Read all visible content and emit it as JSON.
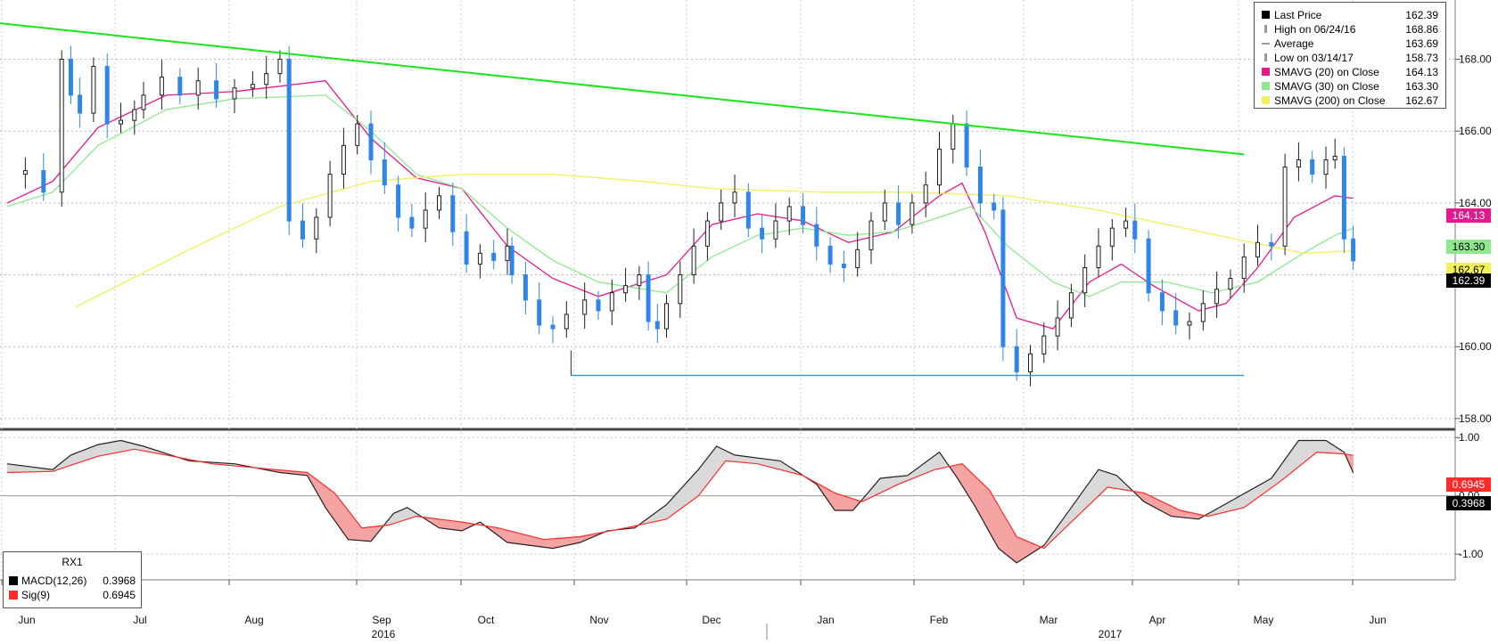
{
  "colors": {
    "up_candle": "#1e1e1e",
    "down_candle": "#2e86e8",
    "trendline": "#19e619",
    "support": "#3a9ad9",
    "sma20": "#e6198c",
    "sma30": "#8fe88f",
    "sma200": "#f0f05a",
    "macd": "#222222",
    "signal": "#ff2a2a",
    "macd_fill_up": "#d9d9d9",
    "macd_fill_down": "#f5a3a3"
  },
  "legend": {
    "items": [
      {
        "name": "Last Price",
        "value": "162.39",
        "swatch": "#000000"
      },
      {
        "name": "High on 06/24/16",
        "value": "168.86",
        "swatch": "#9a9a9a"
      },
      {
        "name": "Average",
        "value": "163.69",
        "swatch": "#9a9a9a"
      },
      {
        "name": "Low on 03/14/17",
        "value": "158.73",
        "swatch": "#9a9a9a"
      },
      {
        "name": "SMAVG (20) on Close",
        "value": "164.13",
        "swatch": "#e6198c"
      },
      {
        "name": "SMAVG (30) on Close",
        "value": "163.30",
        "swatch": "#8fe88f"
      },
      {
        "name": "SMAVG (200) on Close",
        "value": "162.67",
        "swatch": "#f0f05a"
      }
    ]
  },
  "price_tags": [
    {
      "value": "164.13",
      "bg": "#e6198c",
      "fg": "#ffffff"
    },
    {
      "value": "163.30",
      "bg": "#8fe88f",
      "fg": "#000000"
    },
    {
      "value": "162.67",
      "bg": "#f0f05a",
      "fg": "#000000"
    },
    {
      "value": "162.39",
      "bg": "#000000",
      "fg": "#ffffff"
    }
  ],
  "macd_tags": [
    {
      "value": "0.6945",
      "bg": "#ff2a2a",
      "fg": "#ffffff"
    },
    {
      "value": "0.3968",
      "bg": "#000000",
      "fg": "#ffffff"
    }
  ],
  "macd_legend": {
    "title": "RX1",
    "items": [
      {
        "name": "MACD(12,26)",
        "value": "0.3968",
        "swatch": "#000000"
      },
      {
        "name": "Sig(9)",
        "value": "0.6945",
        "swatch": "#ff2a2a"
      }
    ]
  },
  "chart_data": {
    "type": "candlestick",
    "price_axis": {
      "ticks": [
        "158.00",
        "160.00",
        "162.00",
        "164.00",
        "166.00",
        "168.00"
      ],
      "range": [
        157.75,
        169.5
      ]
    },
    "macd_axis": {
      "ticks": [
        "1.00",
        "0.00",
        "-1.00"
      ],
      "range": [
        -1.35,
        1.08
      ]
    },
    "months": [
      "Jun",
      "Jul",
      "Aug",
      "Sep",
      "Oct",
      "Nov",
      "Dec",
      "Jan",
      "Feb",
      "Mar",
      "Apr",
      "May",
      "Jun"
    ],
    "years": [
      "2016",
      "2017"
    ],
    "trendline": [
      [
        0,
        169.0
      ],
      [
        272,
        165.35
      ]
    ],
    "support": [
      [
        124,
        159.2
      ],
      [
        272,
        159.2
      ]
    ],
    "closes": [
      [
        0,
        164.8
      ],
      [
        4,
        164.9
      ],
      [
        8,
        164.3
      ],
      [
        12,
        168.0
      ],
      [
        14,
        167.0
      ],
      [
        16,
        166.5
      ],
      [
        19,
        167.8
      ],
      [
        22,
        166.2
      ],
      [
        25,
        166.3
      ],
      [
        28,
        166.6
      ],
      [
        30,
        167.0
      ],
      [
        34,
        167.5
      ],
      [
        38,
        167.0
      ],
      [
        42,
        167.4
      ],
      [
        46,
        166.9
      ],
      [
        50,
        167.2
      ],
      [
        54,
        167.3
      ],
      [
        57,
        167.6
      ],
      [
        60,
        168.0
      ],
      [
        62,
        163.5
      ],
      [
        65,
        163.0
      ],
      [
        68,
        163.6
      ],
      [
        71,
        164.8
      ],
      [
        74,
        165.6
      ],
      [
        77,
        166.2
      ],
      [
        80,
        165.2
      ],
      [
        83,
        164.5
      ],
      [
        86,
        163.6
      ],
      [
        89,
        163.3
      ],
      [
        92,
        163.8
      ],
      [
        95,
        164.2
      ],
      [
        98,
        163.2
      ],
      [
        101,
        162.3
      ],
      [
        104,
        162.6
      ],
      [
        107,
        162.4
      ],
      [
        110,
        162.8
      ],
      [
        111,
        162.0
      ],
      [
        114,
        161.3
      ],
      [
        117,
        160.6
      ],
      [
        120,
        160.5
      ],
      [
        123,
        160.9
      ],
      [
        127,
        161.3
      ],
      [
        130,
        161.0
      ],
      [
        133,
        161.5
      ],
      [
        136,
        161.7
      ],
      [
        139,
        162.0
      ],
      [
        141,
        160.7
      ],
      [
        143,
        160.5
      ],
      [
        145,
        161.2
      ],
      [
        148,
        162.0
      ],
      [
        151,
        162.8
      ],
      [
        154,
        163.5
      ],
      [
        157,
        164.0
      ],
      [
        160,
        164.3
      ],
      [
        163,
        163.3
      ],
      [
        166,
        163.0
      ],
      [
        169,
        163.5
      ],
      [
        172,
        163.9
      ],
      [
        175,
        163.4
      ],
      [
        178,
        162.8
      ],
      [
        181,
        162.3
      ],
      [
        184,
        162.2
      ],
      [
        187,
        162.7
      ],
      [
        190,
        163.5
      ],
      [
        193,
        164.0
      ],
      [
        196,
        163.4
      ],
      [
        199,
        164.0
      ],
      [
        202,
        164.5
      ],
      [
        205,
        165.5
      ],
      [
        208,
        166.2
      ],
      [
        211,
        165.0
      ],
      [
        214,
        164.0
      ],
      [
        217,
        163.8
      ],
      [
        219,
        160.0
      ],
      [
        222,
        159.3
      ],
      [
        225,
        159.8
      ],
      [
        228,
        160.3
      ],
      [
        231,
        160.8
      ],
      [
        234,
        161.5
      ],
      [
        237,
        162.2
      ],
      [
        240,
        162.8
      ],
      [
        243,
        163.3
      ],
      [
        246,
        163.5
      ],
      [
        248,
        163.0
      ],
      [
        251,
        161.5
      ],
      [
        254,
        161.0
      ],
      [
        257,
        160.6
      ],
      [
        260,
        160.7
      ],
      [
        263,
        161.2
      ],
      [
        266,
        161.6
      ],
      [
        269,
        161.9
      ],
      [
        272,
        162.5
      ],
      [
        275,
        162.9
      ],
      [
        278,
        162.8
      ],
      [
        281,
        165.0
      ],
      [
        284,
        165.2
      ],
      [
        287,
        164.8
      ],
      [
        290,
        165.2
      ],
      [
        292,
        165.3
      ],
      [
        294,
        163.0
      ],
      [
        296,
        162.39
      ]
    ],
    "series": [
      {
        "name": "SMAVG (20) on Close",
        "values": [
          [
            0,
            164.0
          ],
          [
            10,
            164.6
          ],
          [
            20,
            166.1
          ],
          [
            35,
            167.0
          ],
          [
            50,
            167.1
          ],
          [
            70,
            167.4
          ],
          [
            80,
            165.8
          ],
          [
            90,
            164.7
          ],
          [
            100,
            164.4
          ],
          [
            110,
            162.8
          ],
          [
            120,
            161.9
          ],
          [
            130,
            161.4
          ],
          [
            145,
            162.0
          ],
          [
            155,
            163.4
          ],
          [
            165,
            163.7
          ],
          [
            175,
            163.5
          ],
          [
            185,
            162.9
          ],
          [
            195,
            163.2
          ],
          [
            205,
            164.2
          ],
          [
            210,
            164.55
          ],
          [
            215,
            163.2
          ],
          [
            222,
            160.8
          ],
          [
            230,
            160.5
          ],
          [
            238,
            161.8
          ],
          [
            245,
            162.3
          ],
          [
            252,
            161.7
          ],
          [
            262,
            161.0
          ],
          [
            268,
            161.2
          ],
          [
            275,
            162.2
          ],
          [
            283,
            163.6
          ],
          [
            292,
            164.2
          ],
          [
            296,
            164.13
          ]
        ]
      },
      {
        "name": "SMAVG (30) on Close",
        "values": [
          [
            0,
            163.9
          ],
          [
            10,
            164.3
          ],
          [
            20,
            165.6
          ],
          [
            35,
            166.6
          ],
          [
            50,
            166.9
          ],
          [
            70,
            167.0
          ],
          [
            80,
            166.0
          ],
          [
            90,
            164.8
          ],
          [
            100,
            164.4
          ],
          [
            110,
            163.3
          ],
          [
            120,
            162.4
          ],
          [
            130,
            161.8
          ],
          [
            145,
            161.5
          ],
          [
            155,
            162.5
          ],
          [
            165,
            163.1
          ],
          [
            175,
            163.3
          ],
          [
            185,
            163.1
          ],
          [
            195,
            163.2
          ],
          [
            205,
            163.6
          ],
          [
            212,
            163.9
          ],
          [
            220,
            162.8
          ],
          [
            230,
            161.8
          ],
          [
            238,
            161.4
          ],
          [
            245,
            161.8
          ],
          [
            255,
            161.8
          ],
          [
            265,
            161.5
          ],
          [
            275,
            161.8
          ],
          [
            285,
            162.6
          ],
          [
            292,
            163.1
          ],
          [
            296,
            163.3
          ]
        ]
      },
      {
        "name": "SMAVG (200) on Close",
        "values": [
          [
            15,
            161.1
          ],
          [
            40,
            162.7
          ],
          [
            60,
            163.9
          ],
          [
            80,
            164.6
          ],
          [
            100,
            164.8
          ],
          [
            120,
            164.8
          ],
          [
            140,
            164.6
          ],
          [
            155,
            164.4
          ],
          [
            180,
            164.3
          ],
          [
            200,
            164.3
          ],
          [
            220,
            164.2
          ],
          [
            240,
            163.8
          ],
          [
            255,
            163.4
          ],
          [
            270,
            163.0
          ],
          [
            285,
            162.6
          ],
          [
            296,
            162.67
          ]
        ]
      },
      {
        "name": "MACD(12,26)",
        "values": [
          [
            0,
            0.55
          ],
          [
            10,
            0.45
          ],
          [
            14,
            0.7
          ],
          [
            20,
            0.88
          ],
          [
            25,
            0.95
          ],
          [
            30,
            0.85
          ],
          [
            40,
            0.6
          ],
          [
            50,
            0.55
          ],
          [
            60,
            0.4
          ],
          [
            66,
            0.35
          ],
          [
            70,
            -0.2
          ],
          [
            75,
            -0.75
          ],
          [
            80,
            -0.78
          ],
          [
            85,
            -0.3
          ],
          [
            88,
            -0.2
          ],
          [
            95,
            -0.55
          ],
          [
            100,
            -0.6
          ],
          [
            104,
            -0.45
          ],
          [
            110,
            -0.8
          ],
          [
            120,
            -0.9
          ],
          [
            126,
            -0.8
          ],
          [
            132,
            -0.6
          ],
          [
            138,
            -0.55
          ],
          [
            145,
            -0.15
          ],
          [
            152,
            0.45
          ],
          [
            156,
            0.85
          ],
          [
            160,
            0.7
          ],
          [
            170,
            0.6
          ],
          [
            178,
            0.2
          ],
          [
            182,
            -0.25
          ],
          [
            186,
            -0.25
          ],
          [
            192,
            0.3
          ],
          [
            198,
            0.35
          ],
          [
            205,
            0.75
          ],
          [
            209,
            0.3
          ],
          [
            213,
            -0.2
          ],
          [
            218,
            -0.9
          ],
          [
            222,
            -1.15
          ],
          [
            228,
            -0.85
          ],
          [
            234,
            -0.2
          ],
          [
            240,
            0.45
          ],
          [
            244,
            0.35
          ],
          [
            250,
            -0.1
          ],
          [
            256,
            -0.35
          ],
          [
            262,
            -0.4
          ],
          [
            270,
            -0.05
          ],
          [
            278,
            0.3
          ],
          [
            284,
            0.95
          ],
          [
            290,
            0.95
          ],
          [
            294,
            0.75
          ],
          [
            296,
            0.3968
          ]
        ]
      },
      {
        "name": "Sig(9)",
        "values": [
          [
            0,
            0.4
          ],
          [
            10,
            0.42
          ],
          [
            20,
            0.68
          ],
          [
            28,
            0.8
          ],
          [
            35,
            0.7
          ],
          [
            45,
            0.55
          ],
          [
            55,
            0.48
          ],
          [
            66,
            0.4
          ],
          [
            72,
            0.05
          ],
          [
            78,
            -0.55
          ],
          [
            84,
            -0.5
          ],
          [
            90,
            -0.35
          ],
          [
            100,
            -0.45
          ],
          [
            108,
            -0.55
          ],
          [
            118,
            -0.75
          ],
          [
            126,
            -0.7
          ],
          [
            136,
            -0.55
          ],
          [
            145,
            -0.4
          ],
          [
            152,
            0.0
          ],
          [
            158,
            0.6
          ],
          [
            165,
            0.55
          ],
          [
            175,
            0.35
          ],
          [
            182,
            0.05
          ],
          [
            188,
            -0.1
          ],
          [
            196,
            0.2
          ],
          [
            204,
            0.45
          ],
          [
            210,
            0.55
          ],
          [
            216,
            0.1
          ],
          [
            222,
            -0.7
          ],
          [
            228,
            -0.9
          ],
          [
            236,
            -0.3
          ],
          [
            242,
            0.15
          ],
          [
            250,
            0.05
          ],
          [
            258,
            -0.25
          ],
          [
            264,
            -0.35
          ],
          [
            272,
            -0.2
          ],
          [
            280,
            0.25
          ],
          [
            288,
            0.75
          ],
          [
            294,
            0.72
          ],
          [
            296,
            0.6945
          ]
        ]
      }
    ]
  }
}
